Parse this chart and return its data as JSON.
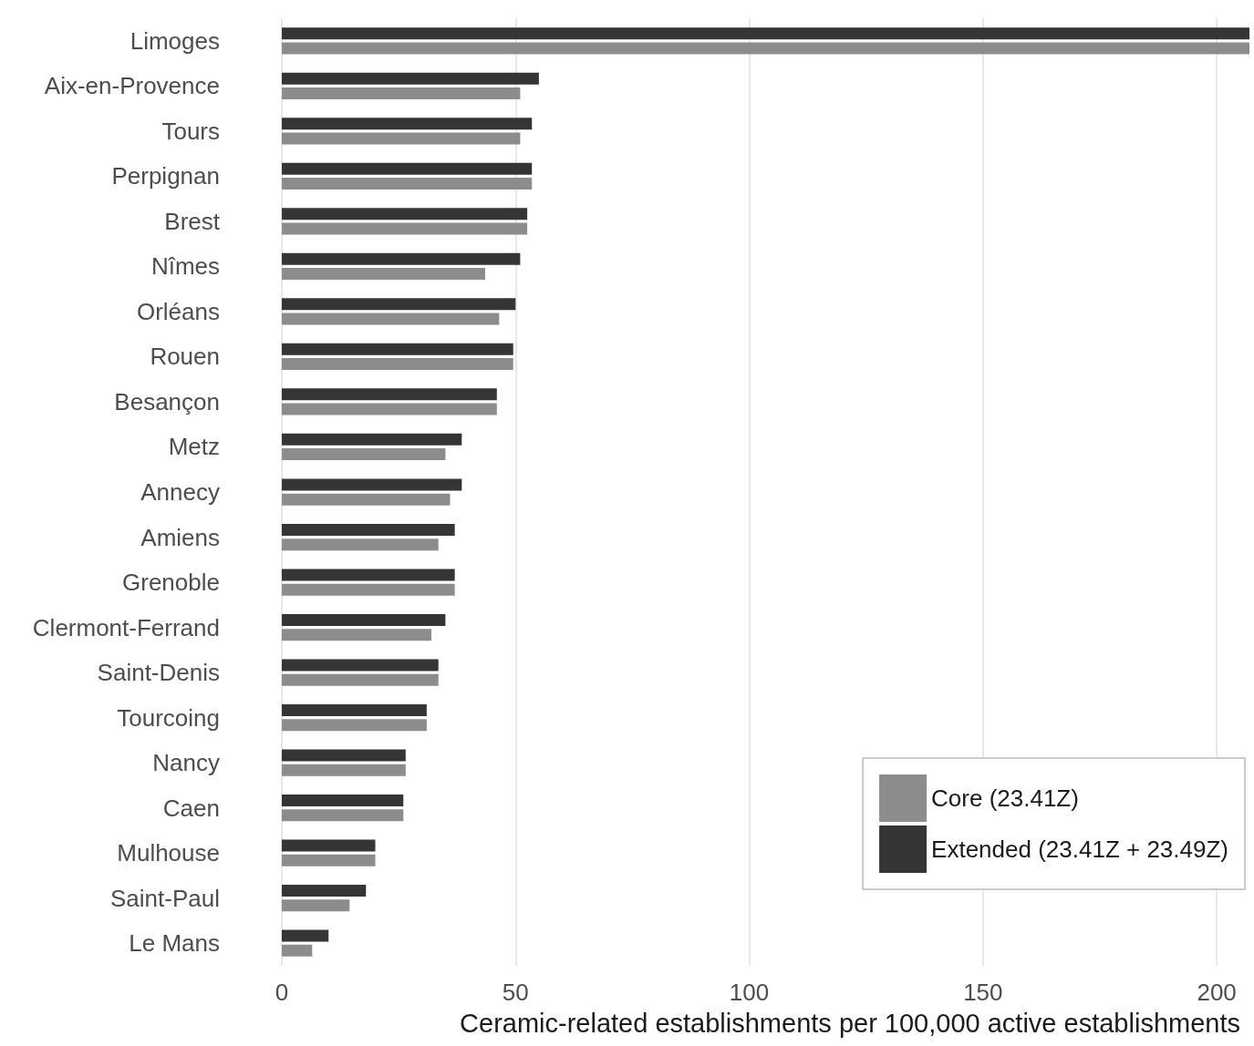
{
  "chart_data": {
    "type": "bar",
    "orientation": "horizontal",
    "xlabel": "Ceramic-related establishments per 100,000 active establishments",
    "categories": [
      "Limoges",
      "Aix-en-Provence",
      "Tours",
      "Perpignan",
      "Brest",
      "Nîmes",
      "Orléans",
      "Rouen",
      "Besançon",
      "Metz",
      "Annecy",
      "Amiens",
      "Grenoble",
      "Clermont-Ferrand",
      "Saint-Denis",
      "Tourcoing",
      "Nancy",
      "Caen",
      "Mulhouse",
      "Saint-Paul",
      "Le Mans"
    ],
    "series": [
      {
        "name": "Core (23.41Z)",
        "color": "#8c8c8c",
        "values": [
          207,
          51,
          51,
          53.5,
          52.5,
          43.5,
          46.5,
          49.5,
          46,
          35,
          36,
          33.5,
          37,
          32,
          33.5,
          31,
          26.5,
          26,
          20,
          14.5,
          6.5
        ]
      },
      {
        "name": "Extended (23.41Z + 23.49Z)",
        "color": "#353535",
        "values": [
          207,
          55,
          53.5,
          53.5,
          52.5,
          51,
          50,
          49.5,
          46,
          38.5,
          38.5,
          37,
          37,
          35,
          33.5,
          31,
          26.5,
          26,
          20,
          18,
          10
        ]
      }
    ],
    "xlim": [
      0,
      207
    ],
    "xticks": [
      0,
      50,
      100,
      150,
      200
    ],
    "grid": "x",
    "legend": "bottom right"
  }
}
